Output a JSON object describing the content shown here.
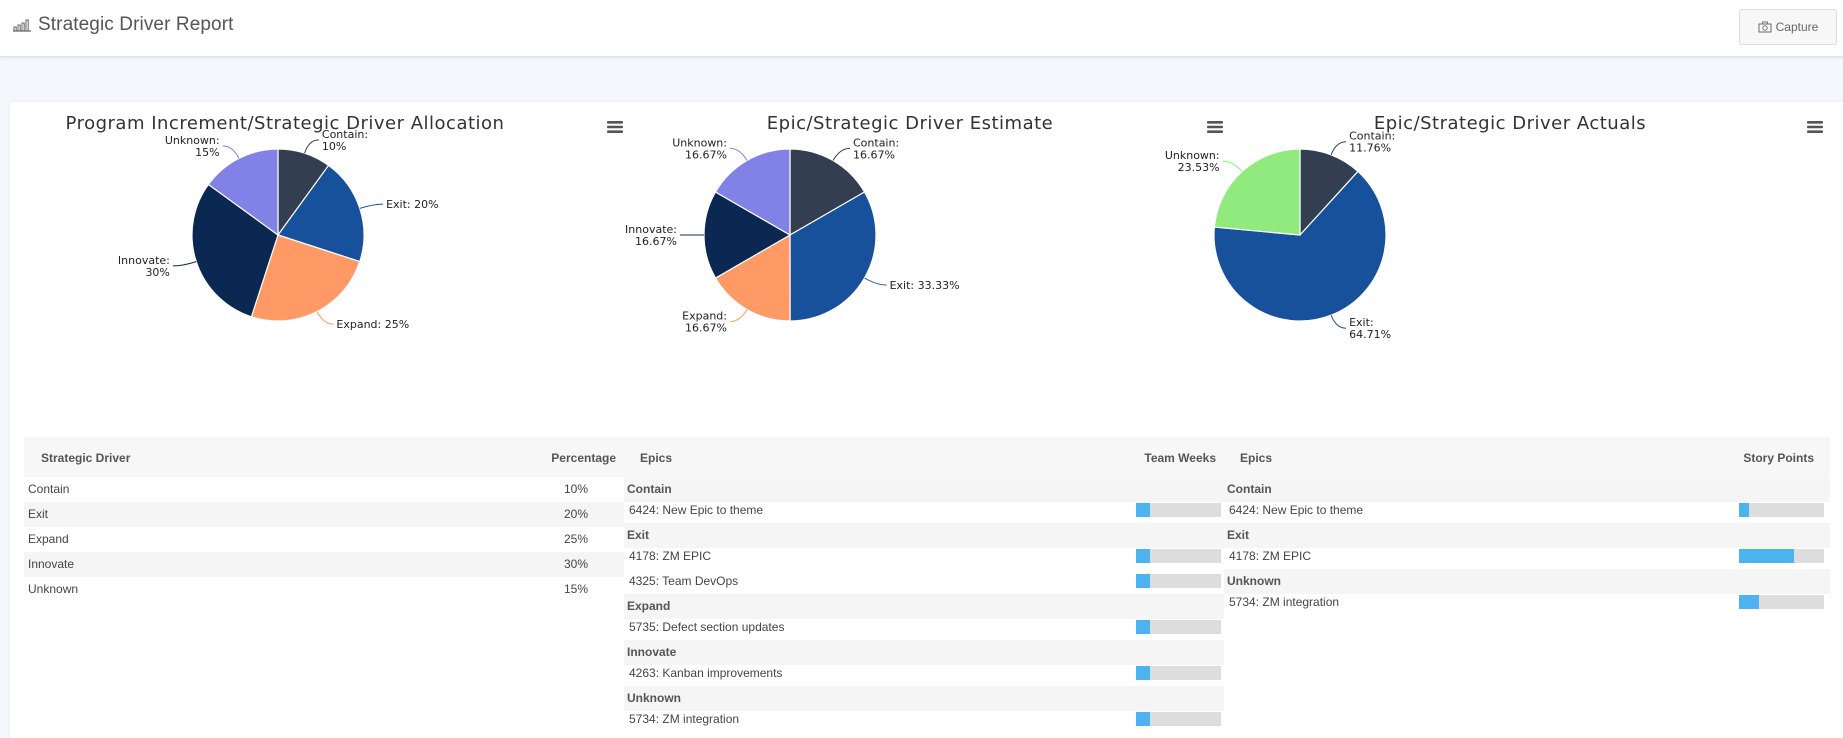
{
  "header": {
    "title": "Strategic Driver Report",
    "capture_label": "Capture"
  },
  "colors": {
    "Contain": "#333f50",
    "Exit": "#17519b",
    "Expand": "#ff9966",
    "Innovate": "#0b2852",
    "Unknown": "#8181e6",
    "UnknownAlt": "#90ea7e",
    "bar": "#4db3f0"
  },
  "charts": [
    {
      "title": "Program Increment/Strategic Driver Allocation",
      "chart_data": {
        "type": "pie",
        "title": "Program Increment/Strategic Driver Allocation",
        "slices": [
          {
            "name": "Contain",
            "value": 10,
            "label": "10%"
          },
          {
            "name": "Exit",
            "value": 20,
            "label": "20%"
          },
          {
            "name": "Expand",
            "value": 25,
            "label": "25%"
          },
          {
            "name": "Innovate",
            "value": 30,
            "label": "30%"
          },
          {
            "name": "Unknown",
            "value": 15,
            "label": "15%"
          }
        ]
      }
    },
    {
      "title": "Epic/Strategic Driver Estimate",
      "chart_data": {
        "type": "pie",
        "title": "Epic/Strategic Driver Estimate",
        "slices": [
          {
            "name": "Contain",
            "value": 16.67,
            "label": "16.67%"
          },
          {
            "name": "Exit",
            "value": 33.33,
            "label": "33.33%"
          },
          {
            "name": "Expand",
            "value": 16.67,
            "label": "16.67%"
          },
          {
            "name": "Innovate",
            "value": 16.67,
            "label": "16.67%"
          },
          {
            "name": "Unknown",
            "value": 16.67,
            "label": "16.67%"
          }
        ]
      }
    },
    {
      "title": "Epic/Strategic Driver Actuals",
      "chart_data": {
        "type": "pie",
        "title": "Epic/Strategic Driver Actuals",
        "slices": [
          {
            "name": "Contain",
            "value": 11.76,
            "label": "11.76%"
          },
          {
            "name": "Exit",
            "value": 64.71,
            "label": "64.71%"
          },
          {
            "name": "Unknown",
            "value": 23.53,
            "label": "23.53%"
          }
        ]
      }
    }
  ],
  "allocation_table": {
    "headers": [
      "Strategic Driver",
      "Percentage"
    ],
    "rows": [
      [
        "Contain",
        "10%"
      ],
      [
        "Exit",
        "20%"
      ],
      [
        "Expand",
        "25%"
      ],
      [
        "Innovate",
        "30%"
      ],
      [
        "Unknown",
        "15%"
      ]
    ]
  },
  "estimate_table": {
    "headers": [
      "Epics",
      "Team Weeks"
    ],
    "rows": [
      {
        "type": "group",
        "label": "Contain"
      },
      {
        "type": "item",
        "label": "6424: New Epic to theme",
        "fraction": 0.17
      },
      {
        "type": "group",
        "label": "Exit"
      },
      {
        "type": "item",
        "label": "4178: ZM EPIC",
        "fraction": 0.17
      },
      {
        "type": "item",
        "label": "4325: Team DevOps",
        "fraction": 0.17
      },
      {
        "type": "group",
        "label": "Expand"
      },
      {
        "type": "item",
        "label": "5735: Defect section updates",
        "fraction": 0.17
      },
      {
        "type": "group",
        "label": "Innovate"
      },
      {
        "type": "item",
        "label": "4263: Kanban improvements",
        "fraction": 0.17
      },
      {
        "type": "group",
        "label": "Unknown"
      },
      {
        "type": "item",
        "label": "5734: ZM integration",
        "fraction": 0.17
      }
    ]
  },
  "actuals_table": {
    "headers": [
      "Epics",
      "Story Points"
    ],
    "rows": [
      {
        "type": "group",
        "label": "Contain"
      },
      {
        "type": "item",
        "label": "6424: New Epic to theme",
        "fraction": 0.12
      },
      {
        "type": "group",
        "label": "Exit"
      },
      {
        "type": "item",
        "label": "4178: ZM EPIC",
        "fraction": 0.65
      },
      {
        "type": "group",
        "label": "Unknown"
      },
      {
        "type": "item",
        "label": "5734: ZM integration",
        "fraction": 0.24
      }
    ]
  }
}
